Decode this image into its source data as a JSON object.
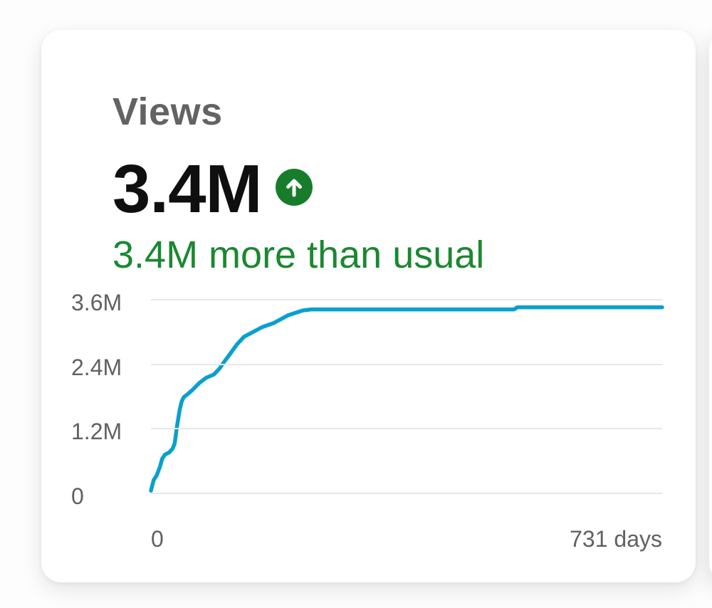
{
  "card": {
    "title": "Views",
    "metric_value": "3.4M",
    "trend_note": "3.4M more than usual",
    "trend_icon": "arrow-up-circle"
  },
  "colors": {
    "line_blue": "#0aa0cd",
    "trend_green": "#1b8830",
    "icon_green": "#177d2b",
    "title_gray": "#636363",
    "value_black": "#0f0f0f",
    "axis_gray": "#616161",
    "gridline_gray": "#e8e8e8",
    "card_bg": "#ffffff",
    "page_bg": "#fdfdfd"
  },
  "chart_data": {
    "type": "line",
    "title": "Views over time",
    "xlabel": "days",
    "ylabel": "Views",
    "grid": "horizontal",
    "legend": "none",
    "xlim": [
      0,
      731
    ],
    "ylim_millions": [
      0,
      3.6
    ],
    "x_tick_labels": [
      "0",
      "731 days"
    ],
    "y_ticks_millions": [
      3.6,
      2.4,
      1.2,
      0
    ],
    "y_tick_labels": [
      "3.6M",
      "2.4M",
      "1.2M",
      "0"
    ],
    "series": [
      {
        "name": "Views",
        "units": "millions",
        "points": [
          [
            0,
            0.05
          ],
          [
            4,
            0.25
          ],
          [
            8,
            0.33
          ],
          [
            13,
            0.5
          ],
          [
            16,
            0.64
          ],
          [
            20,
            0.72
          ],
          [
            26,
            0.76
          ],
          [
            31,
            0.83
          ],
          [
            34,
            0.93
          ],
          [
            37,
            1.22
          ],
          [
            41,
            1.55
          ],
          [
            44,
            1.71
          ],
          [
            47,
            1.79
          ],
          [
            52,
            1.84
          ],
          [
            59,
            1.92
          ],
          [
            69,
            2.05
          ],
          [
            79,
            2.15
          ],
          [
            90,
            2.21
          ],
          [
            98,
            2.32
          ],
          [
            105,
            2.45
          ],
          [
            113,
            2.59
          ],
          [
            123,
            2.77
          ],
          [
            133,
            2.91
          ],
          [
            146,
            3.0
          ],
          [
            159,
            3.09
          ],
          [
            176,
            3.17
          ],
          [
            196,
            3.31
          ],
          [
            217,
            3.4
          ],
          [
            229,
            3.42
          ],
          [
            519,
            3.42
          ],
          [
            524,
            3.46
          ],
          [
            731,
            3.46
          ]
        ]
      }
    ]
  }
}
